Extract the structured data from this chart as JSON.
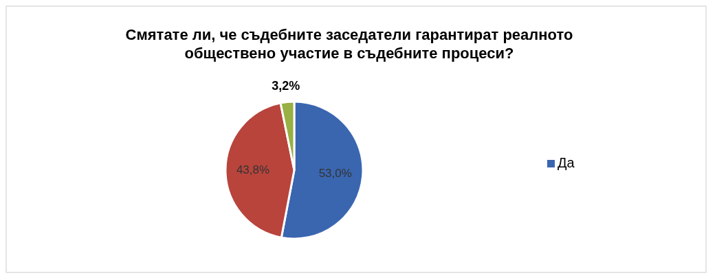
{
  "chart_data": {
    "type": "pie",
    "title": "Смятате ли, че съдебните заседатели гарантират реалното обществено участие в съдебните процеси?",
    "categories": [
      "Да",
      null,
      null
    ],
    "values": [
      53.0,
      43.8,
      3.2
    ],
    "colors": [
      "#3a66b0",
      "#b8443c",
      "#98b044"
    ],
    "value_labels": [
      "53,0%",
      "43,8%",
      "3,2%"
    ],
    "legend": "right"
  }
}
